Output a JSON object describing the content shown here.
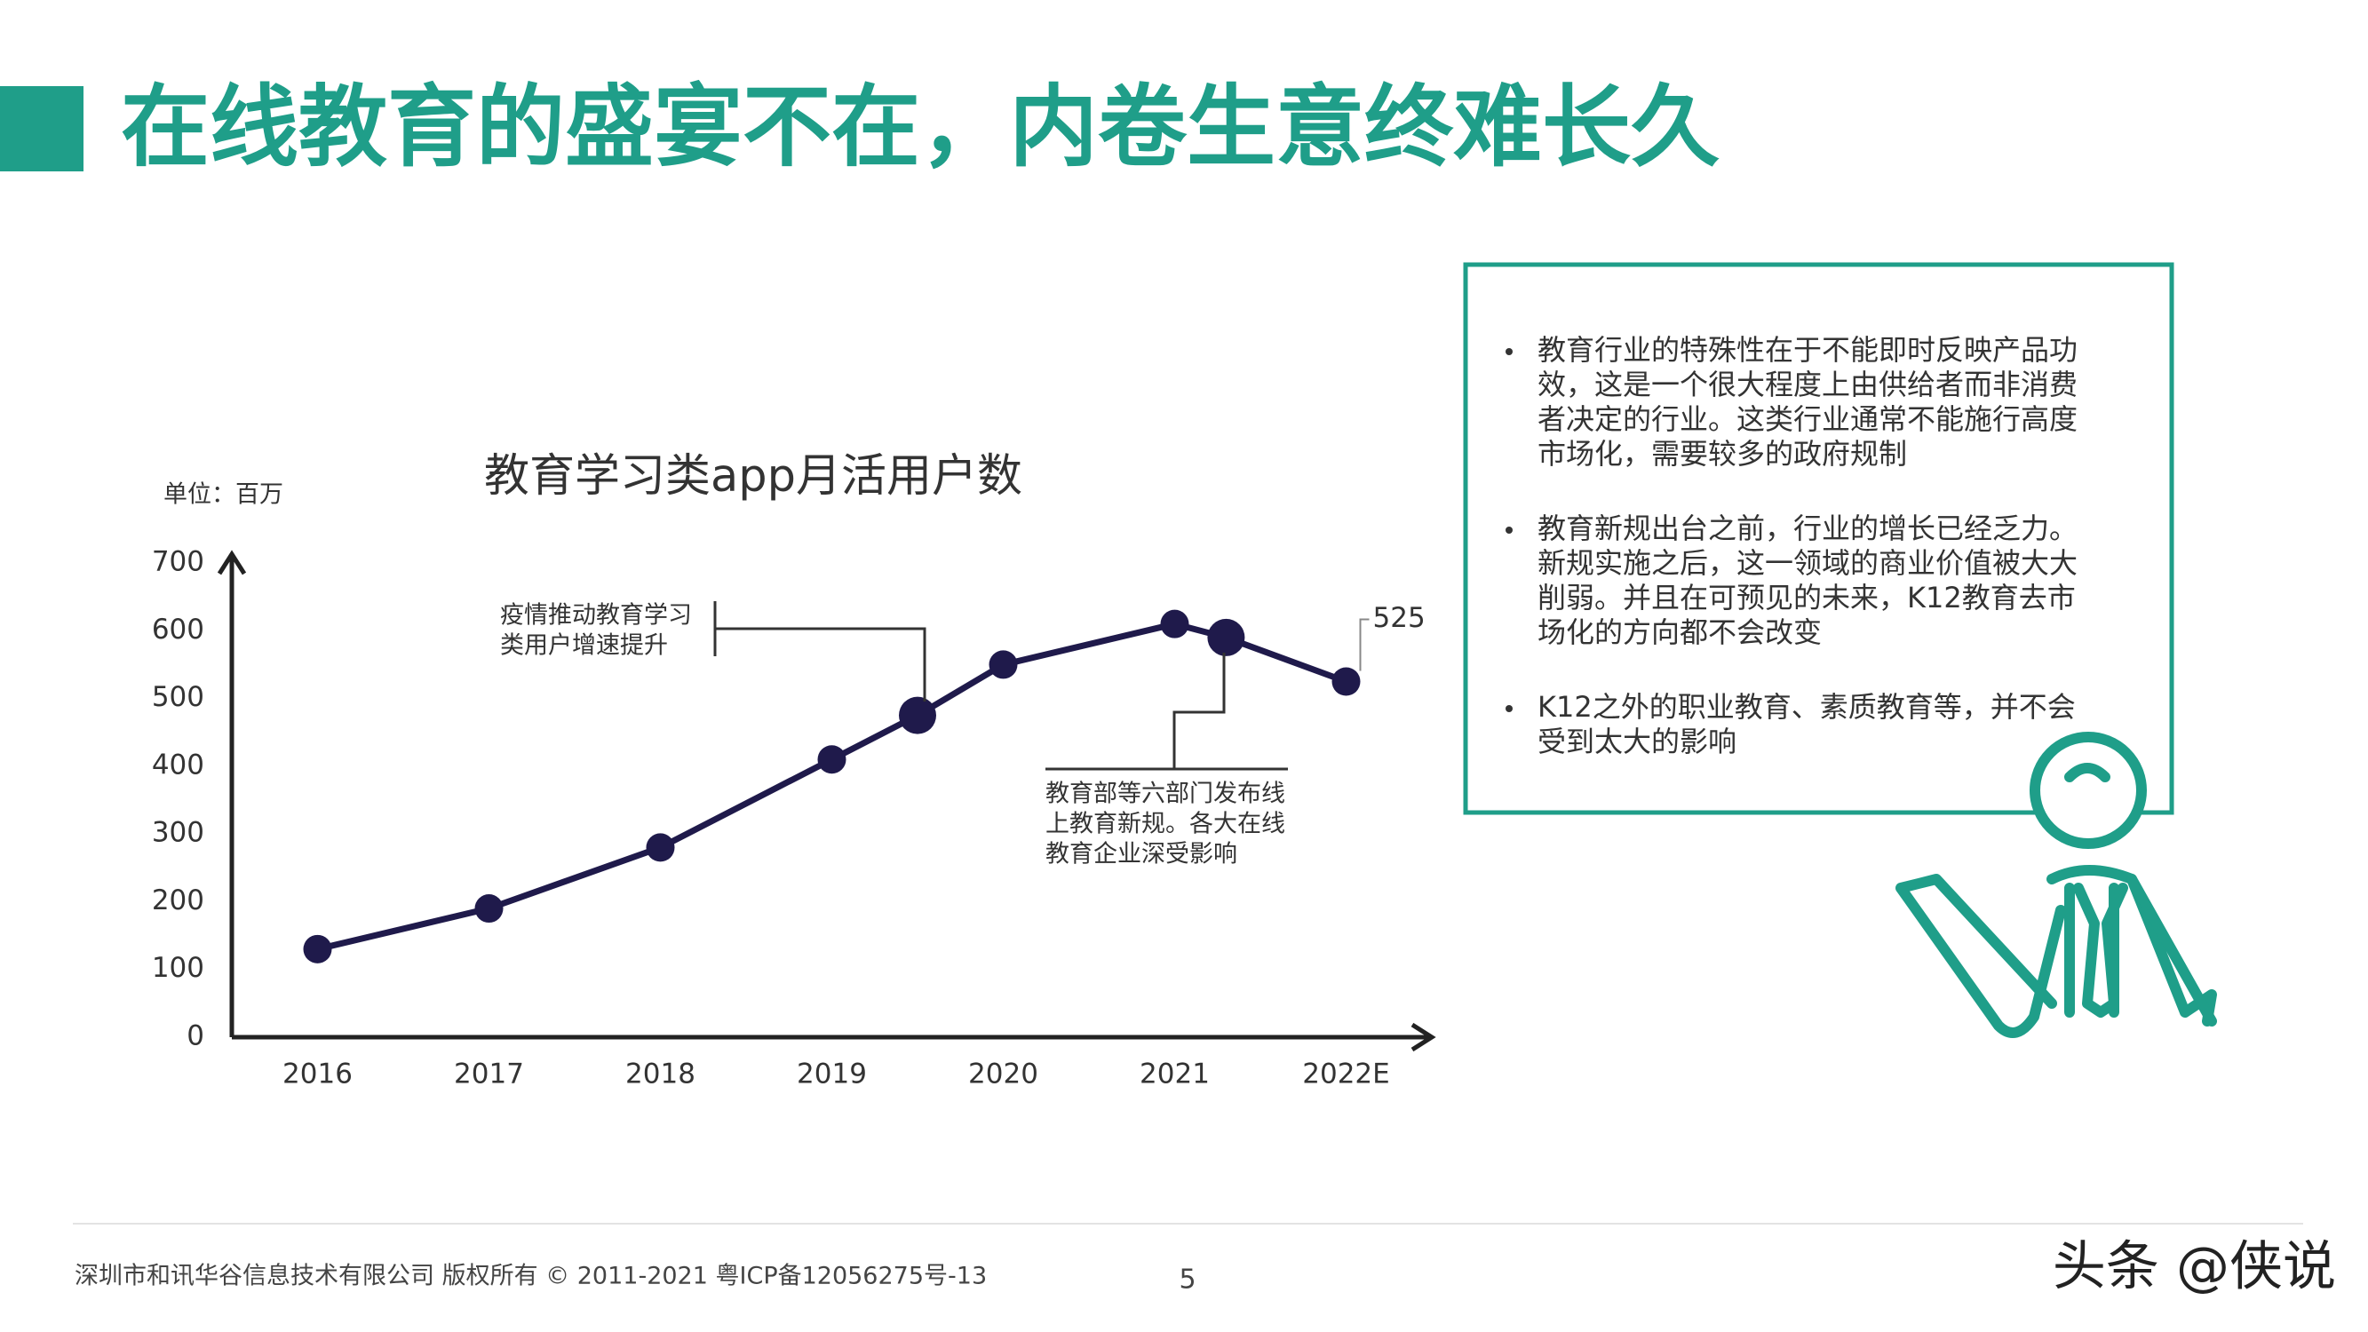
{
  "title": "在线教育的盛宴不在，内卷生意终难长久",
  "chart_data": {
    "type": "line",
    "title": "教育学习类app月活用户数",
    "unit_label": "单位：百万",
    "x": [
      2016,
      2017,
      2018,
      2019,
      2019.5,
      2020,
      2021,
      2021.3,
      2022
    ],
    "values": [
      130,
      190,
      280,
      410,
      475,
      550,
      610,
      590,
      525
    ],
    "value_labels": [
      null,
      null,
      null,
      null,
      null,
      null,
      null,
      null,
      "525"
    ],
    "color": "#1f1a4b",
    "xlim": [
      2015.5,
      2022.5
    ],
    "xticks": [
      2016,
      2017,
      2018,
      2019,
      2020,
      2021,
      {
        "value": 2022,
        "label": "2022E"
      }
    ],
    "ylim": [
      0,
      700
    ],
    "yticks": [
      0,
      100,
      200,
      300,
      400,
      500,
      600,
      700
    ],
    "grid": false,
    "annotations": [
      {
        "text": [
          "疫情推动教育学习",
          "类用户增速提升"
        ]
      },
      {
        "text": [
          "教育部等六部门发布线",
          "上教育新规。各大在线",
          "教育企业深受影响"
        ]
      }
    ]
  },
  "notes": {
    "bullets": [
      [
        "教育行业的特殊性在于不能即时反映产品功",
        "效，这是一个很大程度上由供给者而非消费",
        "者决定的行业。这类行业通常不能施行高度",
        "市场化，需要较多的政府规制"
      ],
      [
        "教育新规出台之前，行业的增长已经乏力。",
        "新规实施之后，这一领域的商业价值被大大",
        "削弱。并且在可预见的未来，K12教育去市",
        "场化的方向都不会改变"
      ],
      [
        "K12之外的职业教育、素质教育等，并不会",
        "受到太大的影响"
      ]
    ]
  },
  "footer": {
    "copyright": "深圳市和讯华谷信息技术有限公司 版权所有 © 2011-2021 粤ICP备12056275号-13",
    "page_number": "5",
    "watermark": "头条 @侠说"
  }
}
